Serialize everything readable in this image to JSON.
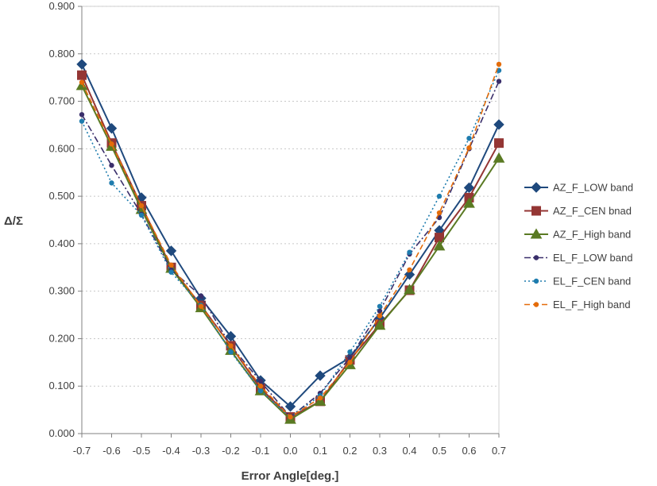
{
  "chart_data": {
    "type": "line",
    "title": "",
    "xlabel": "Error Angle[deg.]",
    "ylabel": "Δ/Σ",
    "xlim": [
      -0.7,
      0.7
    ],
    "ylim": [
      0,
      0.9
    ],
    "x_ticks": [
      "-0.7",
      "-0.6",
      "-0.5",
      "-0.4",
      "-0.3",
      "-0.2",
      "-0.1",
      "0.0",
      "0.1",
      "0.2",
      "0.3",
      "0.4",
      "0.5",
      "0.6",
      "0.7"
    ],
    "y_ticks": [
      "0.000",
      "0.100",
      "0.200",
      "0.300",
      "0.400",
      "0.500",
      "0.600",
      "0.700",
      "0.800",
      "0.900"
    ],
    "grid": "horizontal dotted",
    "legend_position": "right",
    "x": [
      -0.7,
      -0.6,
      -0.5,
      -0.4,
      -0.3,
      -0.2,
      -0.1,
      0.0,
      0.1,
      0.2,
      0.3,
      0.4,
      0.5,
      0.6,
      0.7
    ],
    "series": [
      {
        "name": "AZ_F_LOW band",
        "color": "#1f497d",
        "marker": "diamond",
        "dash": "solid",
        "values": [
          0.778,
          0.643,
          0.497,
          0.385,
          0.285,
          0.205,
          0.112,
          0.057,
          0.122,
          0.16,
          0.243,
          0.335,
          0.428,
          0.518,
          0.651
        ]
      },
      {
        "name": "AZ_F_CEN bnad",
        "color": "#943634",
        "marker": "square",
        "dash": "solid",
        "values": [
          0.755,
          0.612,
          0.48,
          0.35,
          0.27,
          0.185,
          0.095,
          0.035,
          0.068,
          0.155,
          0.23,
          0.302,
          0.413,
          0.497,
          0.612
        ]
      },
      {
        "name": "AZ_F_High band",
        "color": "#5a7a23",
        "marker": "triangle",
        "dash": "solid",
        "values": [
          0.733,
          0.605,
          0.472,
          0.348,
          0.265,
          0.175,
          0.09,
          0.03,
          0.068,
          0.145,
          0.228,
          0.303,
          0.395,
          0.485,
          0.58
        ]
      },
      {
        "name": "EL_F_LOW band",
        "color": "#3a2f6b",
        "marker": "dot",
        "dash": "dashdot",
        "values": [
          0.672,
          0.565,
          0.462,
          0.345,
          0.29,
          0.185,
          0.11,
          0.035,
          0.085,
          0.16,
          0.258,
          0.378,
          0.455,
          0.6,
          0.742
        ]
      },
      {
        "name": "EL_F_CEN band",
        "color": "#1e7cae",
        "marker": "dot",
        "dash": "dotted",
        "values": [
          0.658,
          0.528,
          0.46,
          0.34,
          0.27,
          0.172,
          0.09,
          0.035,
          0.08,
          0.172,
          0.268,
          0.382,
          0.5,
          0.622,
          0.765
        ]
      },
      {
        "name": "EL_F_High band",
        "color": "#e46c0a",
        "marker": "dot",
        "dash": "dashed",
        "values": [
          0.74,
          0.61,
          0.48,
          0.355,
          0.268,
          0.185,
          0.1,
          0.035,
          0.075,
          0.15,
          0.248,
          0.345,
          0.465,
          0.602,
          0.778
        ]
      }
    ]
  }
}
